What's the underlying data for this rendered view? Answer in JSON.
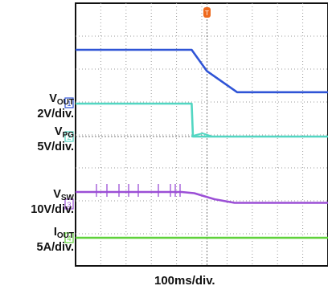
{
  "chart_data": {
    "type": "line",
    "title": "",
    "xlabel": "100ms/div.",
    "trigger_marker": "T",
    "x_divisions": 10,
    "series": [
      {
        "name": "V",
        "subscript": "OUT",
        "scale": "2V/div.",
        "channel_marker": "1",
        "color": "#2f54d6",
        "points": [
          [
            0,
            3.0
          ],
          [
            4.6,
            3.0
          ],
          [
            5.2,
            1.8
          ],
          [
            6.4,
            0.6
          ],
          [
            10,
            0.6
          ]
        ]
      },
      {
        "name": "V",
        "subscript": "PG",
        "scale": "5V/div.",
        "channel_marker": "2",
        "color": "#52d6c2",
        "points": [
          [
            0,
            1.0
          ],
          [
            4.6,
            1.0
          ],
          [
            4.65,
            0.0
          ],
          [
            10,
            0.0
          ]
        ]
      },
      {
        "name": "V",
        "subscript": "SW",
        "scale": "10V/div.",
        "channel_marker": "3",
        "color": "#9b4fd6",
        "points": [
          [
            0,
            0.5
          ],
          [
            4.2,
            0.5
          ],
          [
            4.7,
            0.45
          ],
          [
            5.5,
            0.2
          ],
          [
            6.3,
            0.05
          ],
          [
            10,
            0.05
          ]
        ]
      },
      {
        "name": "I",
        "subscript": "OUT",
        "scale": "5A/div.",
        "channel_marker": "4",
        "color": "#5fd13a",
        "points": [
          [
            0,
            0.0
          ],
          [
            10,
            0.0
          ]
        ]
      }
    ],
    "grid": true
  }
}
